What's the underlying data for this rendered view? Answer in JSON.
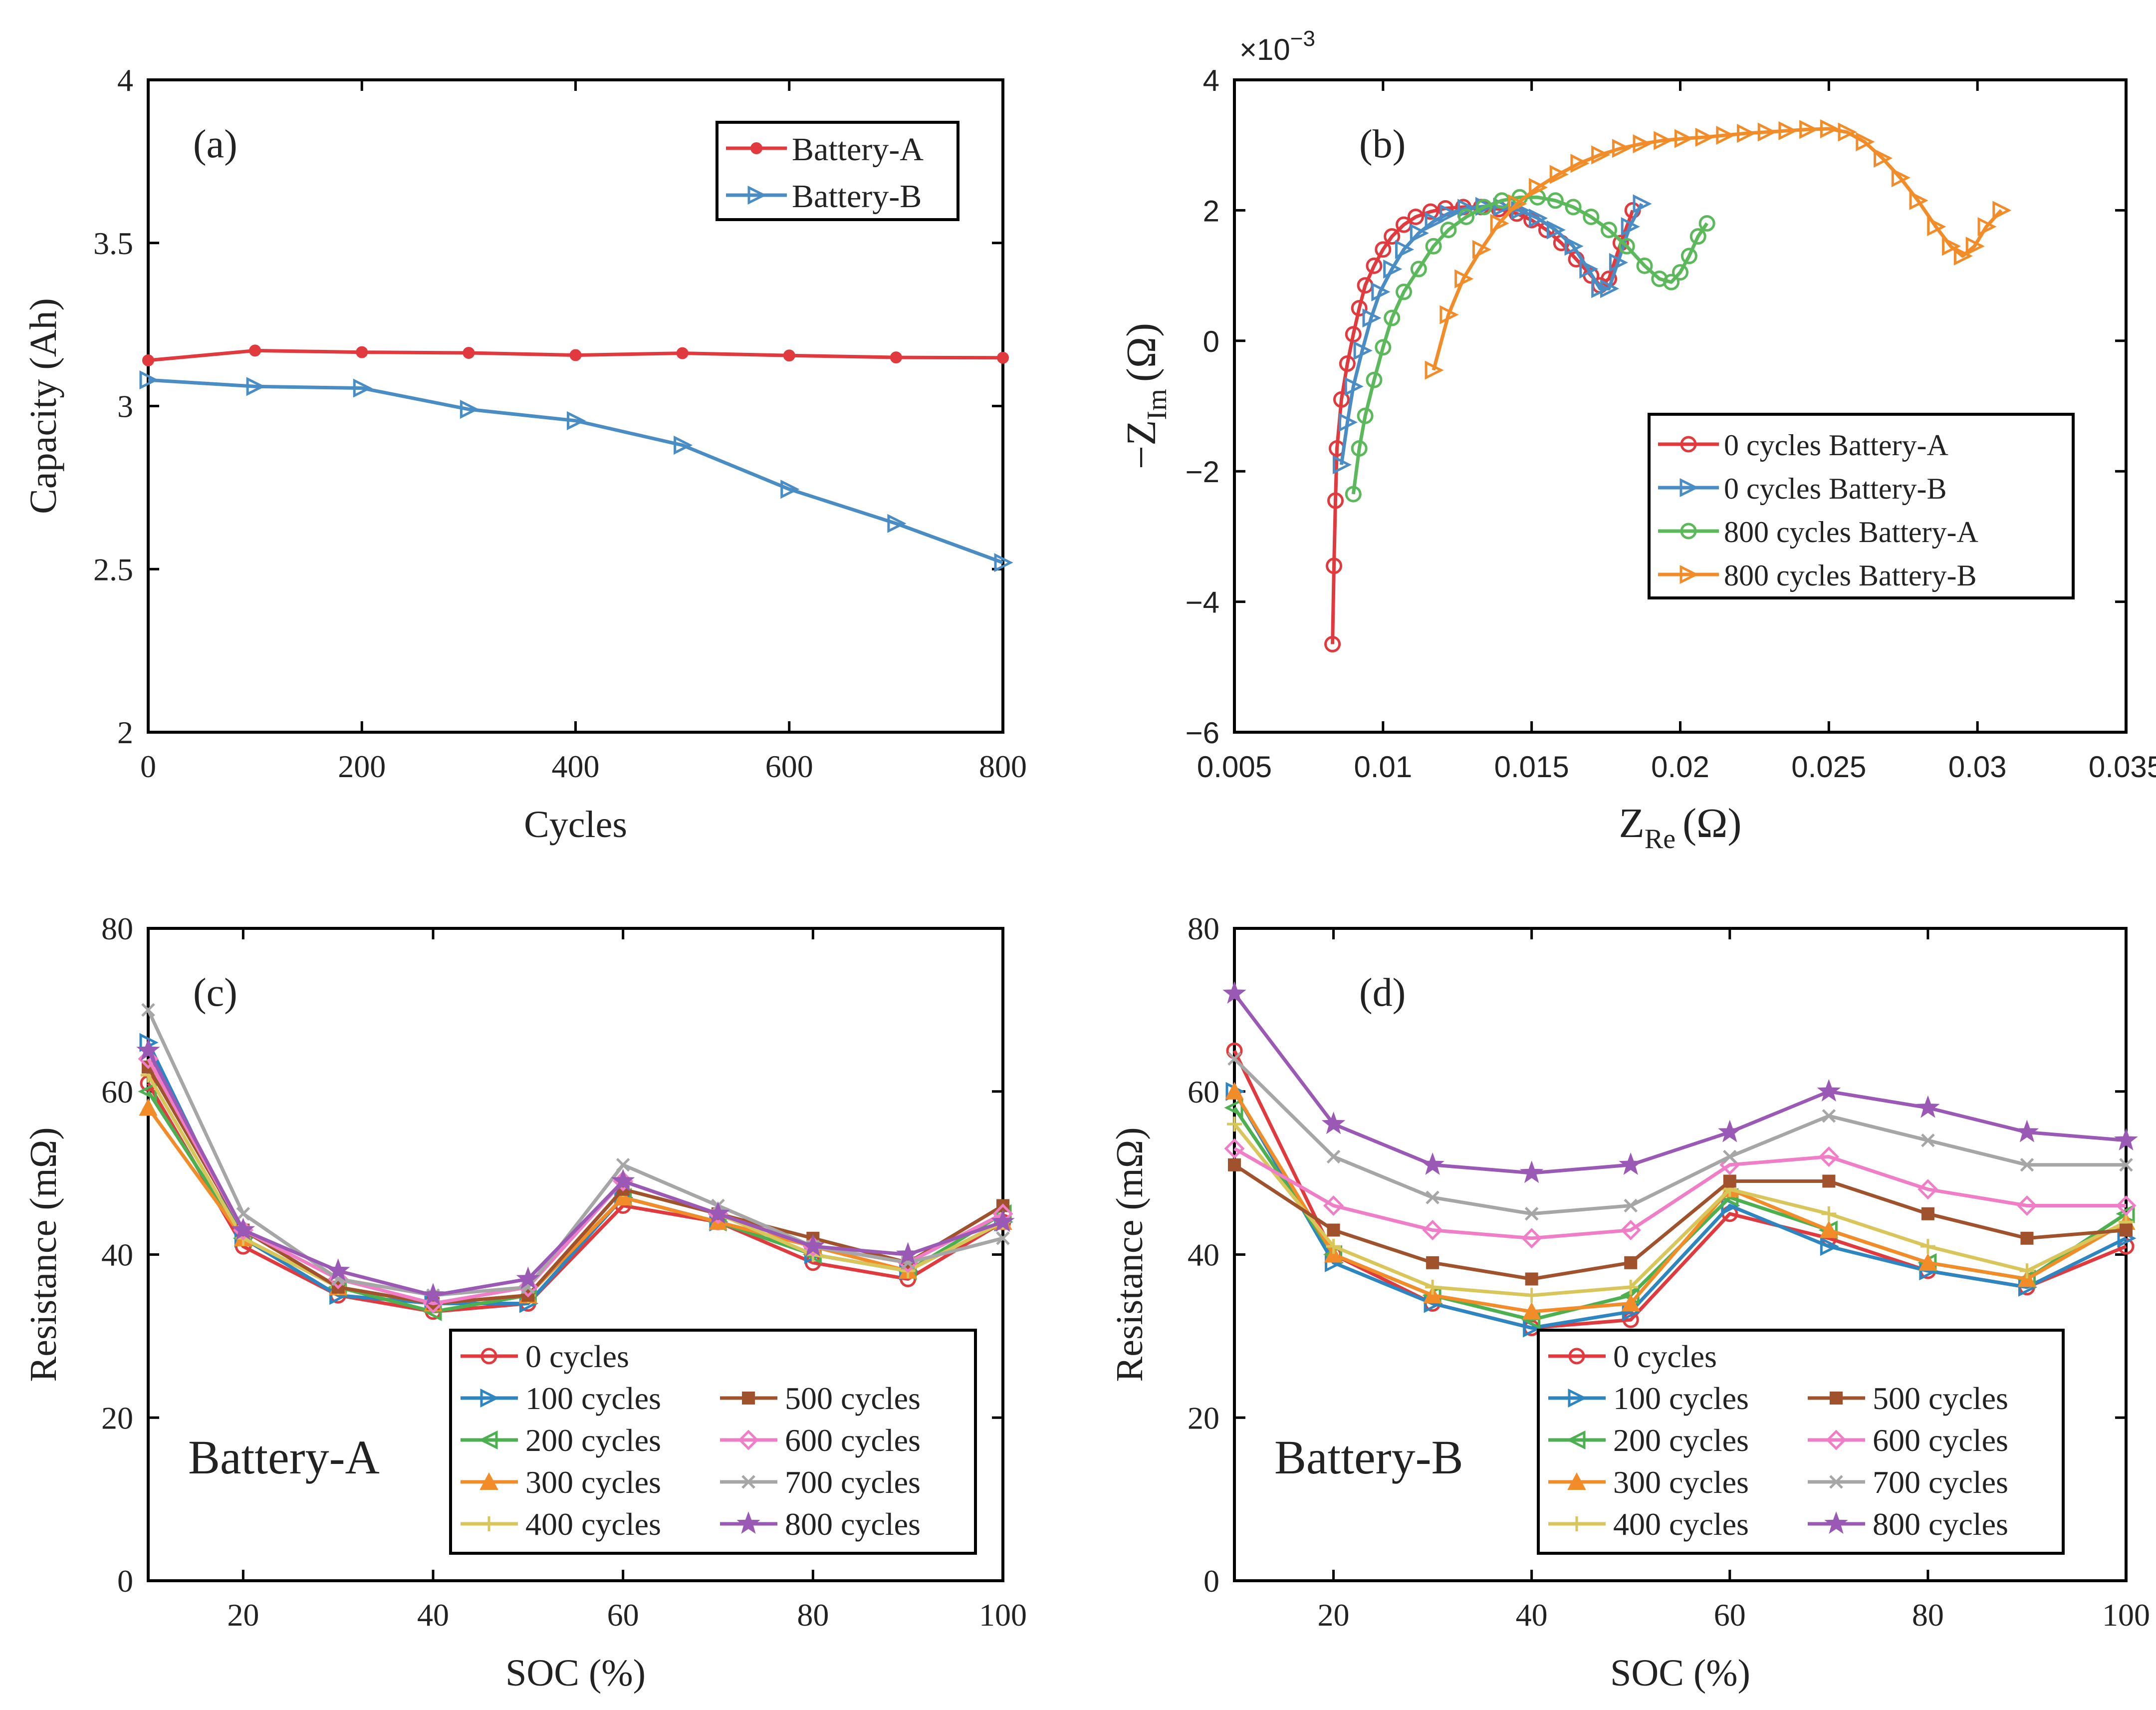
{
  "chart_data": [
    {
      "id": "a",
      "type": "line",
      "panel_label": "(a)",
      "xlabel": "Cycles",
      "ylabel": "Capacity (Ah)",
      "xlim": [
        0,
        800
      ],
      "ylim": [
        2,
        4
      ],
      "xticks": [
        0,
        200,
        400,
        600,
        800
      ],
      "yticks": [
        2,
        2.5,
        3,
        3.5,
        4
      ],
      "xtick_labels": [
        "0",
        "200",
        "400",
        "600",
        "800"
      ],
      "ytick_labels": [
        "2",
        "2.5",
        "3",
        "3.5",
        "4"
      ],
      "legend_position": "top-right",
      "series": [
        {
          "name": "Battery-A",
          "color": "#e03a3e",
          "marker": "dot",
          "x": [
            0,
            100,
            200,
            300,
            400,
            500,
            600,
            700,
            800
          ],
          "y": [
            3.14,
            3.17,
            3.165,
            3.163,
            3.156,
            3.162,
            3.155,
            3.149,
            3.148
          ]
        },
        {
          "name": "Battery-B",
          "color": "#4a8cc4",
          "marker": "triangle-right",
          "x": [
            0,
            100,
            200,
            300,
            400,
            500,
            600,
            700,
            800
          ],
          "y": [
            3.08,
            3.06,
            3.055,
            2.99,
            2.955,
            2.88,
            2.745,
            2.64,
            2.52
          ]
        }
      ]
    },
    {
      "id": "b",
      "type": "line",
      "panel_label": "(b)",
      "xlabel_main": "Z",
      "xlabel_sub": "Re",
      "xlabel_unit": "(Ω)",
      "ylabel_main": "−Z",
      "ylabel_sub": "Im",
      "ylabel_unit": "(Ω)",
      "y_multiplier": "×10",
      "y_multiplier_exp": "−3",
      "xlim": [
        0.005,
        0.035
      ],
      "ylim": [
        -6,
        4
      ],
      "xticks": [
        0.005,
        0.01,
        0.015,
        0.02,
        0.025,
        0.03,
        0.035
      ],
      "yticks": [
        -6,
        -4,
        -2,
        0,
        2,
        4
      ],
      "xtick_labels": [
        "0.005",
        "0.01",
        "0.015",
        "0.02",
        "0.025",
        "0.03",
        "0.035"
      ],
      "ytick_labels": [
        "−6",
        "−4",
        "−2",
        "0",
        "2",
        "4"
      ],
      "legend_position": "bottom-right",
      "series": [
        {
          "name": "0 cycles Battery-A",
          "color": "#e03a3e",
          "marker": "circle",
          "x": [
            0.0083,
            0.00835,
            0.0084,
            0.00845,
            0.0086,
            0.0088,
            0.009,
            0.0092,
            0.0094,
            0.0097,
            0.01,
            0.0103,
            0.0107,
            0.0111,
            0.0116,
            0.0121,
            0.0127,
            0.0133,
            0.0139,
            0.0145,
            0.015,
            0.0155,
            0.016,
            0.0165,
            0.017,
            0.0173,
            0.0176,
            0.018,
            0.0184
          ],
          "y": [
            -4.65,
            -3.45,
            -2.45,
            -1.65,
            -0.9,
            -0.35,
            0.1,
            0.5,
            0.85,
            1.15,
            1.4,
            1.6,
            1.78,
            1.9,
            1.98,
            2.03,
            2.05,
            2.05,
            2.02,
            1.95,
            1.85,
            1.7,
            1.5,
            1.25,
            1.0,
            0.85,
            0.95,
            1.5,
            2.0
          ]
        },
        {
          "name": "0 cycles Battery-B",
          "color": "#4a8cc4",
          "marker": "triangle-right",
          "x": [
            0.0086,
            0.0088,
            0.009,
            0.0093,
            0.0096,
            0.0099,
            0.0103,
            0.0107,
            0.0112,
            0.0117,
            0.0122,
            0.0128,
            0.0134,
            0.014,
            0.0146,
            0.0152,
            0.0158,
            0.0164,
            0.0169,
            0.0173,
            0.0176,
            0.0179,
            0.0183,
            0.0187
          ],
          "y": [
            -1.9,
            -1.25,
            -0.7,
            -0.15,
            0.35,
            0.75,
            1.1,
            1.4,
            1.65,
            1.83,
            1.95,
            2.03,
            2.06,
            2.05,
            2.0,
            1.88,
            1.7,
            1.45,
            1.1,
            0.8,
            0.8,
            1.2,
            1.75,
            2.1
          ]
        },
        {
          "name": "800 cycles Battery-A",
          "color": "#5bb85b",
          "marker": "circle",
          "x": [
            0.009,
            0.0092,
            0.0094,
            0.0097,
            0.01,
            0.0103,
            0.0107,
            0.0112,
            0.0117,
            0.0122,
            0.0128,
            0.0134,
            0.014,
            0.0146,
            0.0152,
            0.0158,
            0.0164,
            0.017,
            0.0176,
            0.0182,
            0.0188,
            0.0193,
            0.0197,
            0.02,
            0.0203,
            0.0206,
            0.0209
          ],
          "y": [
            -2.35,
            -1.65,
            -1.15,
            -0.6,
            -0.1,
            0.35,
            0.75,
            1.1,
            1.45,
            1.7,
            1.9,
            2.05,
            2.15,
            2.2,
            2.2,
            2.15,
            2.05,
            1.9,
            1.7,
            1.45,
            1.15,
            0.95,
            0.9,
            1.05,
            1.3,
            1.6,
            1.8
          ]
        },
        {
          "name": "800 cycles Battery-B",
          "color": "#f28c28",
          "marker": "triangle-right",
          "x": [
            0.0117,
            0.0122,
            0.0127,
            0.0133,
            0.0139,
            0.0145,
            0.0152,
            0.0159,
            0.0166,
            0.0173,
            0.018,
            0.0187,
            0.0194,
            0.0201,
            0.0208,
            0.0215,
            0.0222,
            0.0229,
            0.0236,
            0.0243,
            0.025,
            0.0256,
            0.0262,
            0.0268,
            0.0274,
            0.028,
            0.0286,
            0.0291,
            0.0295,
            0.0299,
            0.0303,
            0.0308
          ],
          "y": [
            -0.45,
            0.4,
            0.95,
            1.4,
            1.8,
            2.1,
            2.35,
            2.55,
            2.72,
            2.85,
            2.95,
            3.02,
            3.07,
            3.1,
            3.12,
            3.15,
            3.18,
            3.2,
            3.22,
            3.24,
            3.25,
            3.2,
            3.05,
            2.8,
            2.5,
            2.15,
            1.75,
            1.45,
            1.3,
            1.45,
            1.75,
            2.0
          ]
        }
      ]
    },
    {
      "id": "c",
      "type": "line",
      "panel_label": "(c)",
      "inner_label": "Battery-A",
      "xlabel": "SOC (%)",
      "ylabel": "Resistance (mΩ)",
      "xlim": [
        10,
        100
      ],
      "ylim": [
        0,
        80
      ],
      "xticks": [
        20,
        40,
        60,
        80,
        100
      ],
      "yticks": [
        0,
        20,
        40,
        60,
        80
      ],
      "xtick_labels": [
        "20",
        "40",
        "60",
        "80",
        "100"
      ],
      "ytick_labels": [
        "0",
        "20",
        "40",
        "60",
        "80"
      ],
      "legend_position": "bottom-right",
      "x": [
        10,
        20,
        30,
        40,
        50,
        60,
        70,
        80,
        90,
        100
      ],
      "series": [
        {
          "name": "0 cycles",
          "color": "#e03a3e",
          "marker": "circle",
          "values": [
            61,
            41,
            35,
            33,
            34,
            46,
            44,
            39,
            37,
            44
          ]
        },
        {
          "name": "100 cycles",
          "color": "#2e86c1",
          "marker": "triangle-right",
          "values": [
            66,
            42,
            35,
            34,
            34,
            47,
            44,
            40,
            38,
            44
          ]
        },
        {
          "name": "200 cycles",
          "color": "#4caf50",
          "marker": "triangle-left",
          "values": [
            60,
            42,
            36,
            33,
            35,
            47,
            44,
            40,
            38,
            45
          ]
        },
        {
          "name": "300 cycles",
          "color": "#f28c28",
          "marker": "triangle-up",
          "values": [
            58,
            42,
            36,
            34,
            35,
            47,
            44,
            41,
            38,
            44
          ]
        },
        {
          "name": "400 cycles",
          "color": "#d9c65a",
          "marker": "plus",
          "values": [
            62,
            42,
            36,
            34,
            35,
            48,
            45,
            40,
            38,
            44
          ]
        },
        {
          "name": "500 cycles",
          "color": "#a0522d",
          "marker": "square",
          "values": [
            63,
            43,
            36,
            34,
            35,
            48,
            45,
            42,
            39,
            46
          ]
        },
        {
          "name": "600 cycles",
          "color": "#f07ec6",
          "marker": "diamond",
          "values": [
            64,
            43,
            37,
            34,
            36,
            49,
            45,
            41,
            39,
            45
          ]
        },
        {
          "name": "700 cycles",
          "color": "#a6a6a6",
          "marker": "x",
          "values": [
            70,
            45,
            37,
            35,
            36,
            51,
            46,
            41,
            39,
            42
          ]
        },
        {
          "name": "800 cycles",
          "color": "#9b59b6",
          "marker": "star",
          "values": [
            65,
            43,
            38,
            35,
            37,
            49,
            45,
            41,
            40,
            44
          ]
        }
      ]
    },
    {
      "id": "d",
      "type": "line",
      "panel_label": "(d)",
      "inner_label": "Battery-B",
      "xlabel": "SOC (%)",
      "ylabel": "Resistance (mΩ)",
      "xlim": [
        10,
        100
      ],
      "ylim": [
        0,
        80
      ],
      "xticks": [
        20,
        40,
        60,
        80,
        100
      ],
      "yticks": [
        0,
        20,
        40,
        60,
        80
      ],
      "xtick_labels": [
        "20",
        "40",
        "60",
        "80",
        "100"
      ],
      "ytick_labels": [
        "0",
        "20",
        "40",
        "60",
        "80"
      ],
      "legend_position": "bottom-right",
      "x": [
        10,
        20,
        30,
        40,
        50,
        60,
        70,
        80,
        90,
        100
      ],
      "series": [
        {
          "name": "0 cycles",
          "color": "#e03a3e",
          "marker": "circle",
          "values": [
            65,
            40,
            34,
            31,
            32,
            45,
            42,
            38,
            36,
            41
          ]
        },
        {
          "name": "100 cycles",
          "color": "#2e86c1",
          "marker": "triangle-right",
          "values": [
            60,
            39,
            34,
            31,
            33,
            46,
            41,
            38,
            36,
            42
          ]
        },
        {
          "name": "200 cycles",
          "color": "#4caf50",
          "marker": "triangle-left",
          "values": [
            58,
            40,
            35,
            32,
            35,
            47,
            43,
            39,
            37,
            45
          ]
        },
        {
          "name": "300 cycles",
          "color": "#f28c28",
          "marker": "triangle-up",
          "values": [
            60,
            40,
            35,
            33,
            34,
            48,
            43,
            39,
            37,
            44
          ]
        },
        {
          "name": "400 cycles",
          "color": "#d9c65a",
          "marker": "plus",
          "values": [
            56,
            41,
            36,
            35,
            36,
            48,
            45,
            41,
            38,
            44
          ]
        },
        {
          "name": "500 cycles",
          "color": "#a0522d",
          "marker": "square",
          "values": [
            51,
            43,
            39,
            37,
            39,
            49,
            49,
            45,
            42,
            43
          ]
        },
        {
          "name": "600 cycles",
          "color": "#f07ec6",
          "marker": "diamond",
          "values": [
            53,
            46,
            43,
            42,
            43,
            51,
            52,
            48,
            46,
            46
          ]
        },
        {
          "name": "700 cycles",
          "color": "#a6a6a6",
          "marker": "x",
          "values": [
            64,
            52,
            47,
            45,
            46,
            52,
            57,
            54,
            51,
            51
          ]
        },
        {
          "name": "800 cycles",
          "color": "#9b59b6",
          "marker": "star",
          "values": [
            72,
            56,
            51,
            50,
            51,
            55,
            60,
            58,
            55,
            54
          ]
        }
      ]
    }
  ]
}
